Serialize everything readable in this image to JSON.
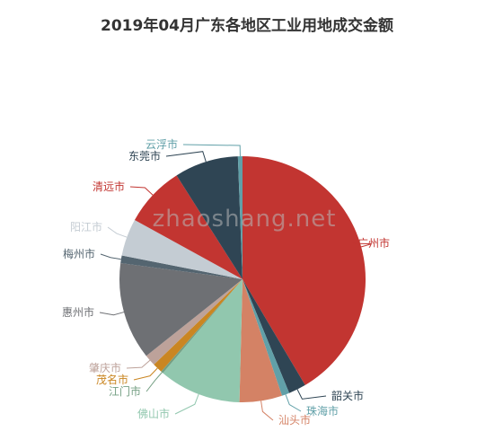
{
  "chart_data": {
    "type": "pie",
    "title": "2019年04月广东各地区工业用地成交金额",
    "watermark": "zhaoshang.net",
    "start_angle_deg": 90,
    "direction": "clockwise",
    "slices": [
      {
        "name": "广州市",
        "value": 41.5,
        "color": "#c23531"
      },
      {
        "name": "韶关市",
        "value": 2.3,
        "color": "#2f4554"
      },
      {
        "name": "珠海市",
        "value": 1.0,
        "color": "#61a0a8"
      },
      {
        "name": "汕头市",
        "value": 5.6,
        "color": "#d48265"
      },
      {
        "name": "佛山市",
        "value": 10.8,
        "color": "#91c7ae"
      },
      {
        "name": "江门市",
        "value": 0.3,
        "color": "#749f83"
      },
      {
        "name": "茂名市",
        "value": 1.3,
        "color": "#ca8622"
      },
      {
        "name": "肇庆市",
        "value": 1.5,
        "color": "#bda29a"
      },
      {
        "name": "惠州市",
        "value": 12.8,
        "color": "#6e7074"
      },
      {
        "name": "梅州市",
        "value": 1.0,
        "color": "#546570"
      },
      {
        "name": "阳江市",
        "value": 4.9,
        "color": "#c4ccd3"
      },
      {
        "name": "清远市",
        "value": 8.0,
        "color": "#c23531"
      },
      {
        "name": "东莞市",
        "value": 8.4,
        "color": "#2f4554"
      },
      {
        "name": "云浮市",
        "value": 0.6,
        "color": "#61a0a8"
      }
    ]
  }
}
